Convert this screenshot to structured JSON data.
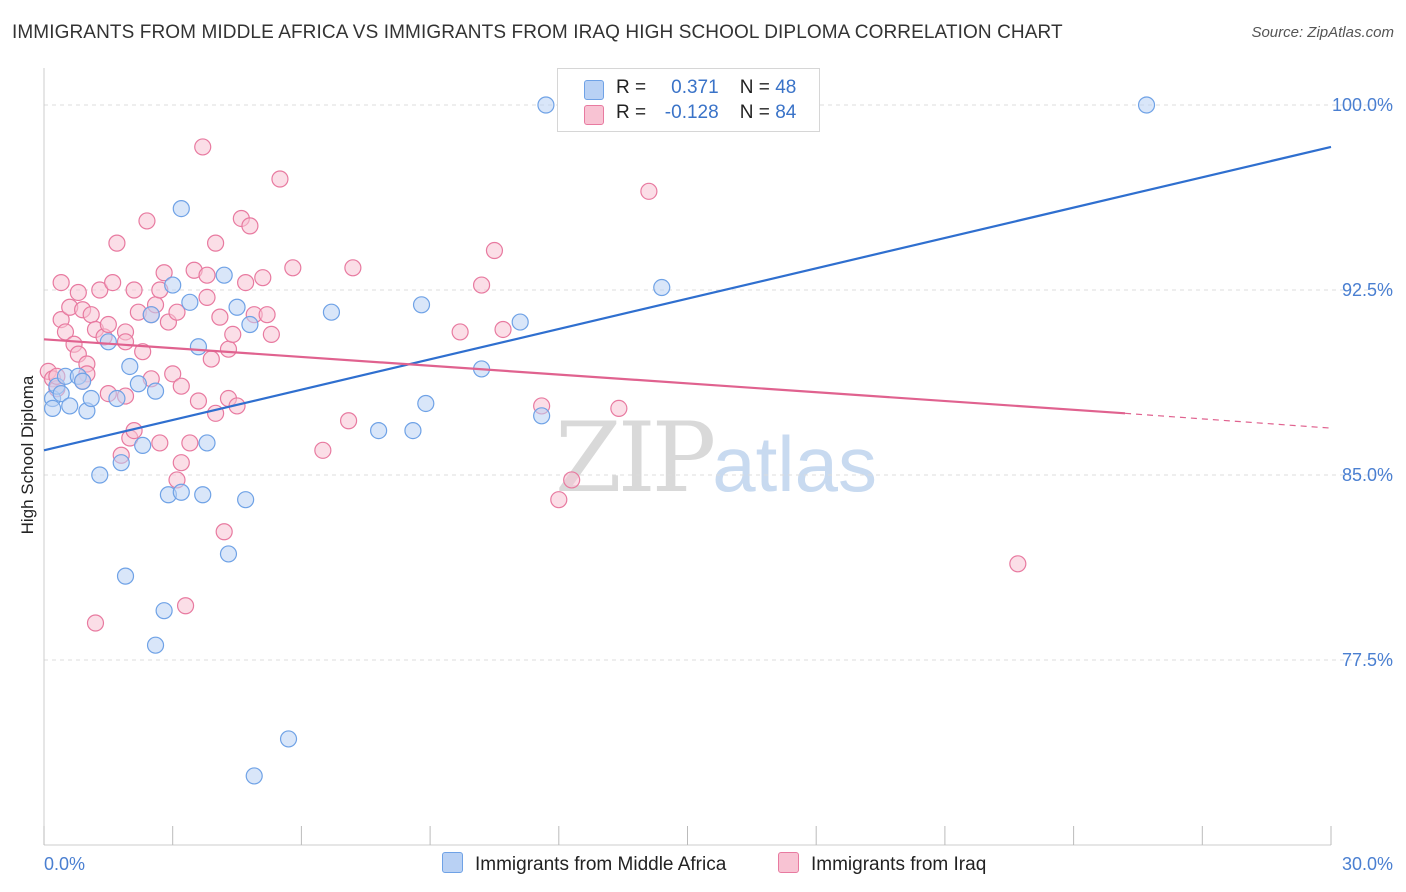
{
  "title": "IMMIGRANTS FROM MIDDLE AFRICA VS IMMIGRANTS FROM IRAQ HIGH SCHOOL DIPLOMA CORRELATION CHART",
  "source": "Source: ZipAtlas.com",
  "watermark": {
    "zip": "ZIP",
    "atlas": "atlas"
  },
  "legend": {
    "r_label": "R =",
    "n_label": "N =",
    "series": [
      {
        "name": "Immigrants from Middle Africa",
        "r": "0.371",
        "n": "48",
        "color": "#6fa2e6",
        "fill": "#b9d1f4"
      },
      {
        "name": "Immigrants from Iraq",
        "r": "-0.128",
        "n": "84",
        "color": "#e87aa0",
        "fill": "#f8c3d3"
      }
    ]
  },
  "chart_data": {
    "type": "scatter",
    "title": "IMMIGRANTS FROM MIDDLE AFRICA VS IMMIGRANTS FROM IRAQ HIGH SCHOOL DIPLOMA CORRELATION CHART",
    "xlabel": "",
    "ylabel": "High School Diploma",
    "xlim": [
      0,
      30
    ],
    "ylim": [
      70.0,
      101.5
    ],
    "x_tick_labels": [
      "0.0%",
      "30.0%"
    ],
    "y_ticks": [
      77.5,
      85.0,
      92.5,
      100.0
    ],
    "y_tick_labels": [
      "77.5%",
      "85.0%",
      "92.5%",
      "100.0%"
    ],
    "grid": true,
    "legend_position": "top-center",
    "series": [
      {
        "name": "Immigrants from Middle Africa",
        "color": "#6fa2e6",
        "trend": {
          "x": [
            0,
            30
          ],
          "y": [
            86.0,
            98.3
          ],
          "style": "solid",
          "color": "#2f6fcf"
        },
        "points": [
          [
            0.2,
            88.1
          ],
          [
            0.2,
            87.7
          ],
          [
            0.3,
            88.6
          ],
          [
            0.4,
            88.3
          ],
          [
            0.5,
            89.0
          ],
          [
            0.6,
            87.8
          ],
          [
            0.8,
            89.0
          ],
          [
            0.9,
            88.8
          ],
          [
            1.0,
            87.6
          ],
          [
            1.1,
            88.1
          ],
          [
            1.3,
            85.0
          ],
          [
            1.5,
            90.4
          ],
          [
            1.7,
            88.1
          ],
          [
            1.8,
            85.5
          ],
          [
            1.9,
            80.9
          ],
          [
            2.0,
            89.4
          ],
          [
            2.2,
            88.7
          ],
          [
            2.3,
            86.2
          ],
          [
            2.5,
            91.5
          ],
          [
            2.6,
            88.4
          ],
          [
            2.6,
            78.1
          ],
          [
            2.8,
            79.5
          ],
          [
            2.9,
            84.2
          ],
          [
            3.0,
            92.7
          ],
          [
            3.2,
            84.3
          ],
          [
            3.2,
            95.8
          ],
          [
            3.4,
            92.0
          ],
          [
            3.6,
            90.2
          ],
          [
            3.7,
            84.2
          ],
          [
            3.8,
            86.3
          ],
          [
            4.2,
            93.1
          ],
          [
            4.3,
            81.8
          ],
          [
            4.5,
            91.8
          ],
          [
            4.7,
            84.0
          ],
          [
            4.8,
            91.1
          ],
          [
            4.9,
            72.8
          ],
          [
            5.7,
            74.3
          ],
          [
            6.7,
            91.6
          ],
          [
            7.8,
            86.8
          ],
          [
            8.6,
            86.8
          ],
          [
            8.8,
            91.9
          ],
          [
            8.9,
            87.9
          ],
          [
            10.2,
            89.3
          ],
          [
            11.1,
            91.2
          ],
          [
            11.6,
            87.4
          ],
          [
            11.7,
            100.0
          ],
          [
            14.4,
            92.6
          ],
          [
            25.7,
            100.0
          ]
        ]
      },
      {
        "name": "Immigrants from Iraq",
        "color": "#e87aa0",
        "trend": {
          "x": [
            0,
            25.2
          ],
          "y": [
            90.5,
            87.5
          ],
          "style": "solid",
          "color": "#e0628f",
          "dashed_extension_to": [
            30,
            86.9
          ]
        },
        "points": [
          [
            0.1,
            89.2
          ],
          [
            0.2,
            88.9
          ],
          [
            0.3,
            88.5
          ],
          [
            0.4,
            91.3
          ],
          [
            0.4,
            92.8
          ],
          [
            0.5,
            90.8
          ],
          [
            0.6,
            91.8
          ],
          [
            0.7,
            90.3
          ],
          [
            0.8,
            89.9
          ],
          [
            0.8,
            92.4
          ],
          [
            0.9,
            91.7
          ],
          [
            1.0,
            89.5
          ],
          [
            1.0,
            89.1
          ],
          [
            1.1,
            91.5
          ],
          [
            1.2,
            90.9
          ],
          [
            1.3,
            92.5
          ],
          [
            1.4,
            90.6
          ],
          [
            1.5,
            88.3
          ],
          [
            1.5,
            91.1
          ],
          [
            1.6,
            92.8
          ],
          [
            1.7,
            94.4
          ],
          [
            1.8,
            85.8
          ],
          [
            1.9,
            88.2
          ],
          [
            1.9,
            90.8
          ],
          [
            1.9,
            90.4
          ],
          [
            2.0,
            86.5
          ],
          [
            2.1,
            92.5
          ],
          [
            2.1,
            86.8
          ],
          [
            2.2,
            91.6
          ],
          [
            2.3,
            90.0
          ],
          [
            2.4,
            95.3
          ],
          [
            2.5,
            91.5
          ],
          [
            2.5,
            88.9
          ],
          [
            2.6,
            91.9
          ],
          [
            2.7,
            86.3
          ],
          [
            2.7,
            92.5
          ],
          [
            2.8,
            93.2
          ],
          [
            2.9,
            91.2
          ],
          [
            3.0,
            89.1
          ],
          [
            3.1,
            84.8
          ],
          [
            3.1,
            91.6
          ],
          [
            3.2,
            85.5
          ],
          [
            3.2,
            88.6
          ],
          [
            3.3,
            79.7
          ],
          [
            3.4,
            86.3
          ],
          [
            3.5,
            93.3
          ],
          [
            3.6,
            88.0
          ],
          [
            3.7,
            98.3
          ],
          [
            3.8,
            93.1
          ],
          [
            3.8,
            92.2
          ],
          [
            3.9,
            89.7
          ],
          [
            4.0,
            94.4
          ],
          [
            4.0,
            87.5
          ],
          [
            4.1,
            91.4
          ],
          [
            4.2,
            82.7
          ],
          [
            4.3,
            88.1
          ],
          [
            4.3,
            90.1
          ],
          [
            4.4,
            90.7
          ],
          [
            4.5,
            87.8
          ],
          [
            4.6,
            95.4
          ],
          [
            4.7,
            92.8
          ],
          [
            4.8,
            95.1
          ],
          [
            4.9,
            91.5
          ],
          [
            5.1,
            93.0
          ],
          [
            5.2,
            91.5
          ],
          [
            5.3,
            90.7
          ],
          [
            5.5,
            97.0
          ],
          [
            5.8,
            93.4
          ],
          [
            6.5,
            86.0
          ],
          [
            7.1,
            87.2
          ],
          [
            7.2,
            93.4
          ],
          [
            9.7,
            90.8
          ],
          [
            10.2,
            92.7
          ],
          [
            10.5,
            94.1
          ],
          [
            10.7,
            90.9
          ],
          [
            11.6,
            87.8
          ],
          [
            12.0,
            84.0
          ],
          [
            12.3,
            84.8
          ],
          [
            13.4,
            87.7
          ],
          [
            14.1,
            96.5
          ],
          [
            22.7,
            81.4
          ],
          [
            0.3,
            89.0
          ],
          [
            0.9,
            88.8
          ],
          [
            1.2,
            79.0
          ]
        ]
      }
    ]
  }
}
